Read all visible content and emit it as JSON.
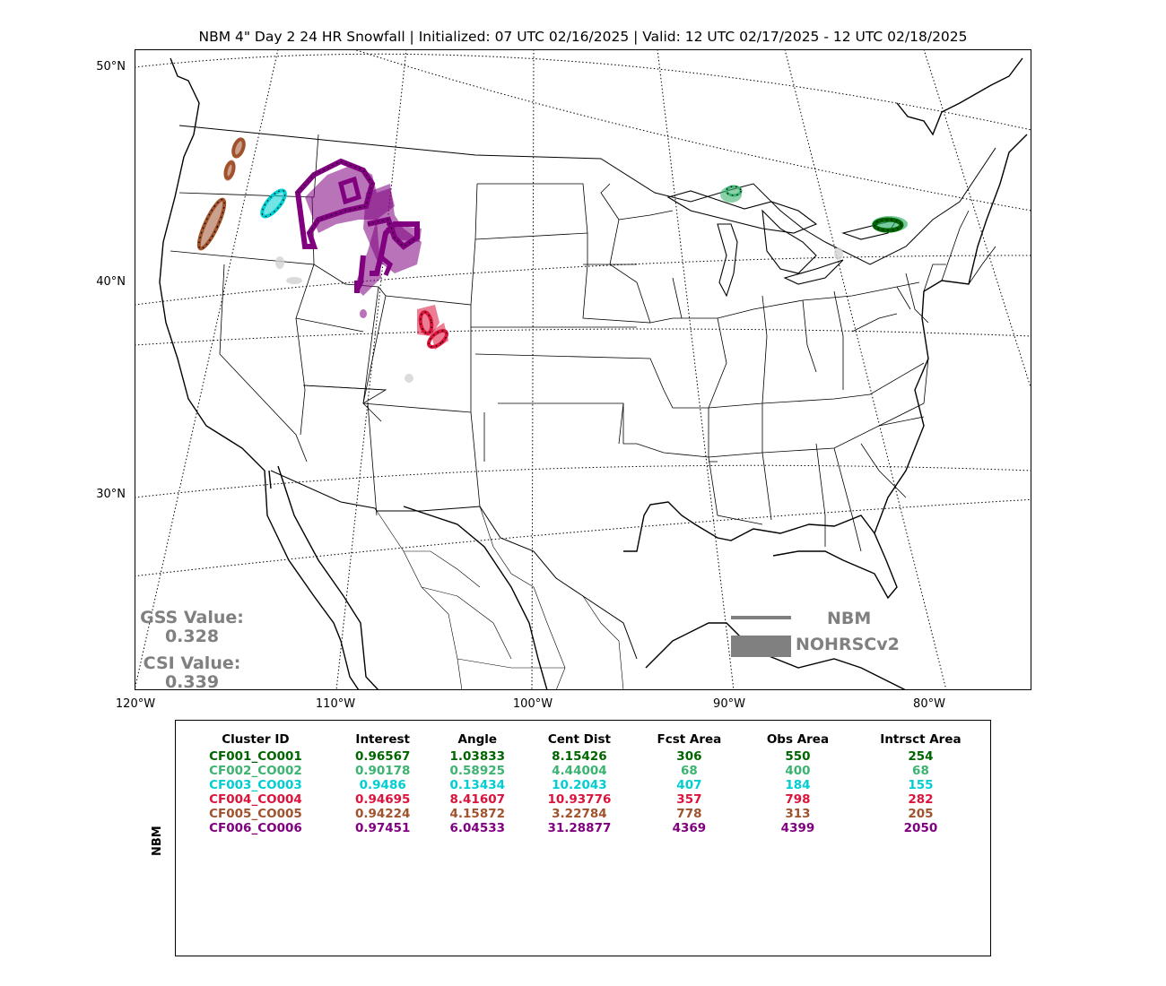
{
  "title": "NBM 4\" Day 2 24 HR Snowfall | Initialized: 07 UTC 02/16/2025 | Valid: 12 UTC 02/17/2025 - 12 UTC 02/18/2025",
  "map": {
    "lat_labels": [
      "50°N",
      "40°N",
      "30°N"
    ],
    "lon_labels": [
      "120°W",
      "110°W",
      "100°W",
      "90°W",
      "80°W"
    ],
    "colors": {
      "nbm": "#808080",
      "cluster1": "#006400",
      "cluster2": "#3cb371",
      "cluster3": "#00ced1",
      "cluster4": "#dc143c",
      "cluster5": "#a0522d",
      "cluster6": "#800080"
    }
  },
  "scores": {
    "gss_label": "GSS Value:",
    "gss_value": "0.328",
    "csi_label": "CSI Value:",
    "csi_value": "0.339"
  },
  "legend": {
    "line_label": "NBM",
    "fill_label": "NOHRSCv2"
  },
  "table": {
    "side_label": "NBM",
    "headers": [
      "Cluster ID",
      "Interest",
      "Angle",
      "Cent Dist",
      "Fcst Area",
      "Obs Area",
      "Intrsct Area"
    ],
    "rows": [
      {
        "color": "#006400",
        "cells": [
          "CF001_CO001",
          "0.96567",
          "1.03833",
          "8.15426",
          "306",
          "550",
          "254"
        ]
      },
      {
        "color": "#3cb371",
        "cells": [
          "CF002_CO002",
          "0.90178",
          "0.58925",
          "4.44004",
          "68",
          "400",
          "68"
        ]
      },
      {
        "color": "#00ced1",
        "cells": [
          "CF003_CO003",
          "0.9486",
          "0.13434",
          "10.2043",
          "407",
          "184",
          "155"
        ]
      },
      {
        "color": "#dc143c",
        "cells": [
          "CF004_CO004",
          "0.94695",
          "8.41607",
          "10.93776",
          "357",
          "798",
          "282"
        ]
      },
      {
        "color": "#a0522d",
        "cells": [
          "CF005_CO005",
          "0.94224",
          "4.15872",
          "3.22784",
          "778",
          "313",
          "205"
        ]
      },
      {
        "color": "#800080",
        "cells": [
          "CF006_CO006",
          "0.97451",
          "6.04533",
          "31.28877",
          "4369",
          "4399",
          "2050"
        ]
      }
    ]
  }
}
